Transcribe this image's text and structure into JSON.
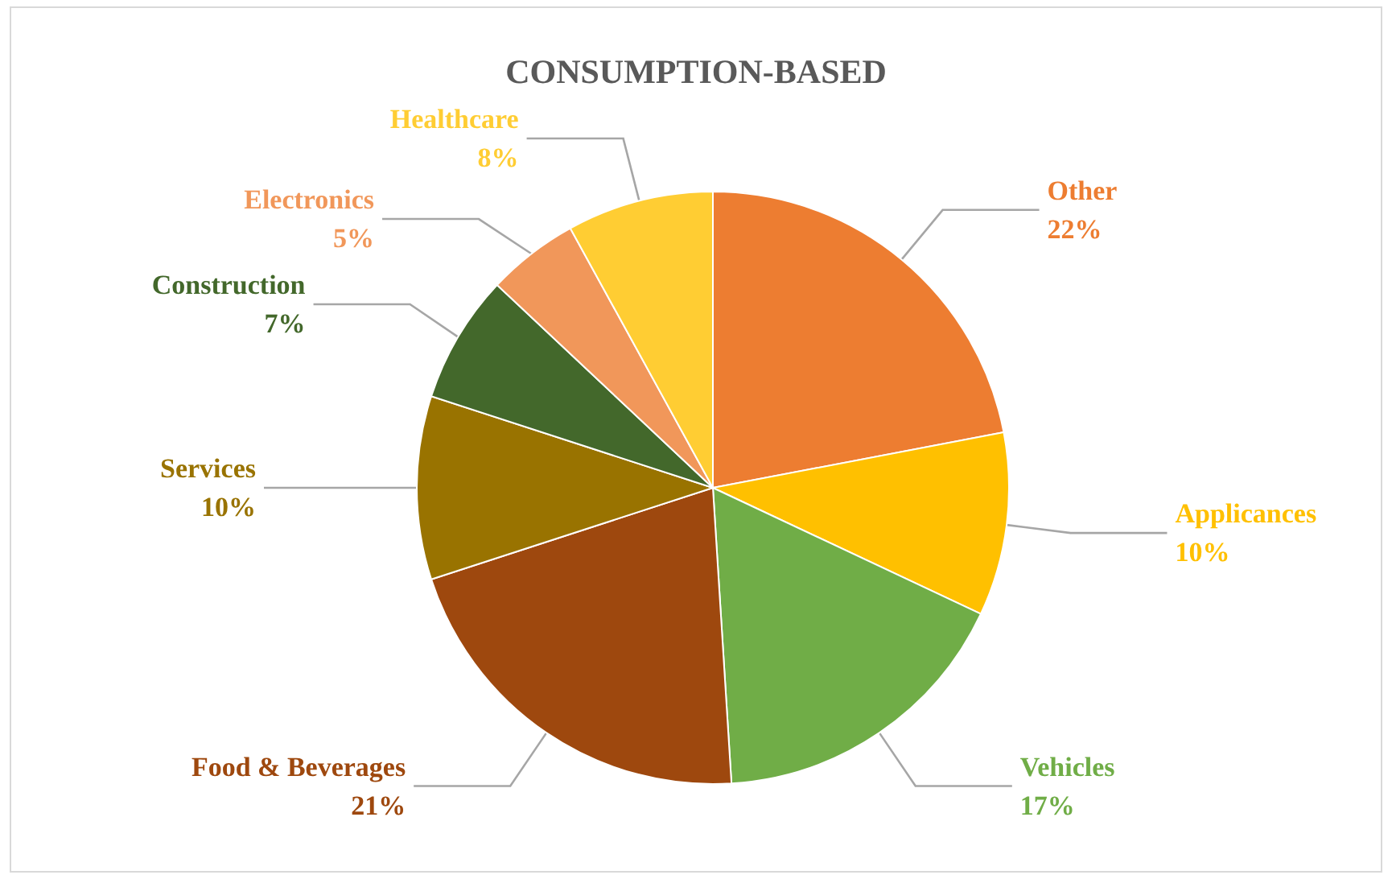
{
  "chart_data": {
    "type": "pie",
    "title": "CONSUMPTION-BASED",
    "categories": [
      "Other",
      "Applicances",
      "Vehicles",
      "Food & Beverages",
      "Services",
      "Construction",
      "Electronics",
      "Healthcare"
    ],
    "values": [
      22,
      10,
      17,
      21,
      10,
      7,
      5,
      8
    ],
    "value_labels": [
      "22%",
      "10%",
      "17%",
      "21%",
      "10%",
      "7%",
      "5%",
      "8%"
    ],
    "colors": [
      "#ed7d31",
      "#ffc000",
      "#70ad47",
      "#9e480e",
      "#997300",
      "#43682b",
      "#f1975a",
      "#ffcd33"
    ],
    "legend": false
  }
}
